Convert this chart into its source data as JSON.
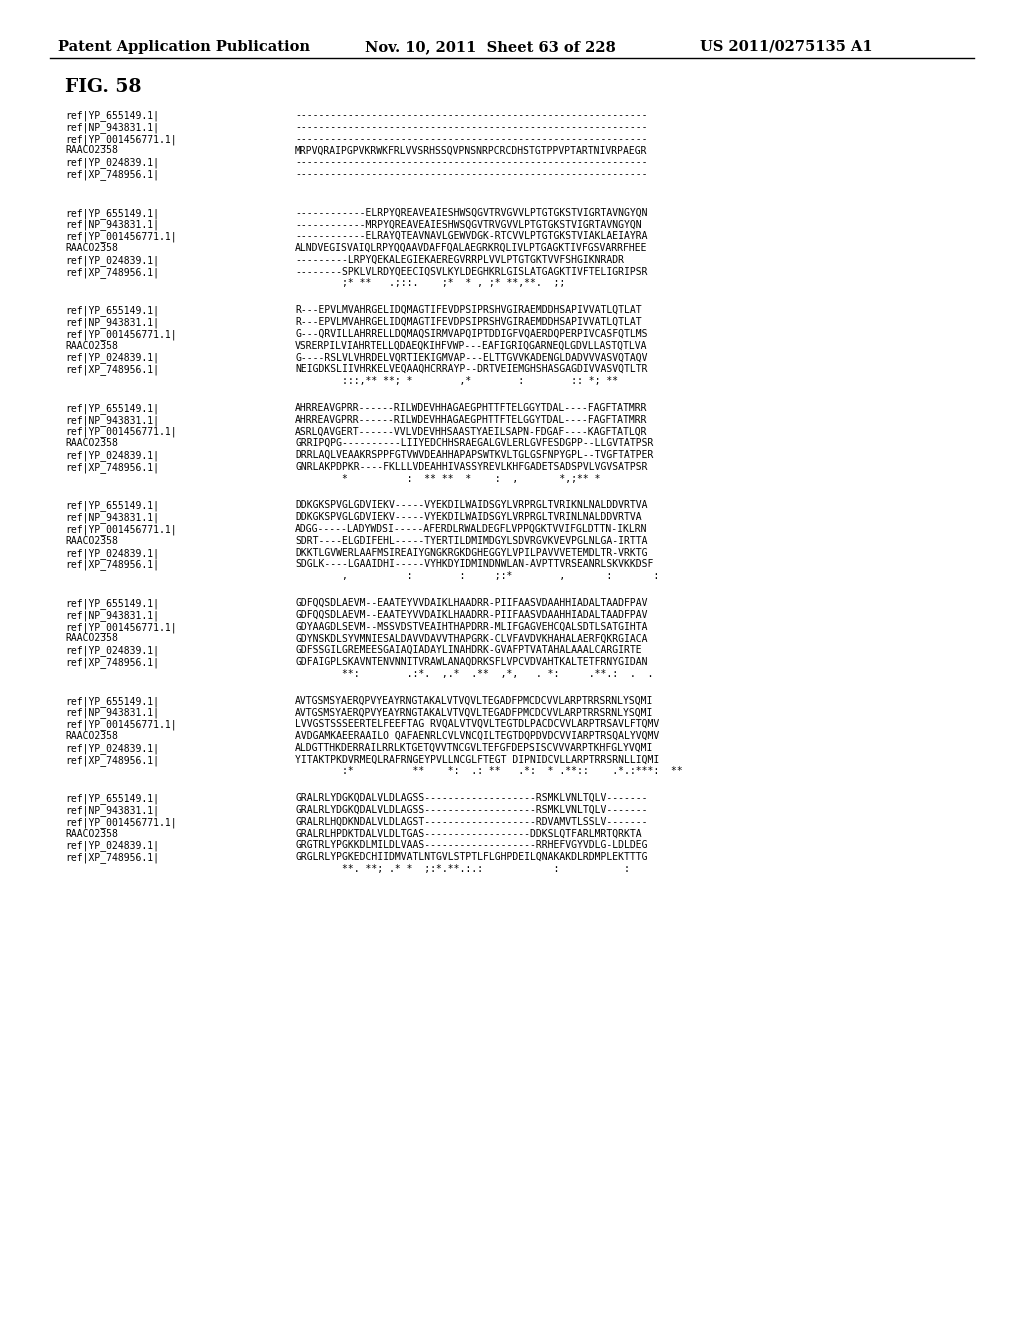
{
  "header_left": "Patent Application Publication",
  "header_middle": "Nov. 10, 2011  Sheet 63 of 228",
  "header_right": "US 2011/0275135 A1",
  "fig_label": "FIG. 58",
  "background_color": "#ffffff",
  "text_color": "#000000",
  "alignment_blocks": [
    {
      "sequences": [
        [
          "ref|YP_655149.1|",
          "------------------------------------------------------------"
        ],
        [
          "ref|NP_943831.1|",
          "------------------------------------------------------------"
        ],
        [
          "ref|YP_001456771.1|",
          "------------------------------------------------------------"
        ],
        [
          "RAACO2358",
          "MRPVQRAIPGPVKRWKFRLVVSRHSSQVPNSNRPCRCDHSTGTPPVPTARTNIVRPAEGR"
        ],
        [
          "ref|YP_024839.1|",
          "------------------------------------------------------------"
        ],
        [
          "ref|XP_748956.1|",
          "------------------------------------------------------------"
        ]
      ],
      "conservation": ""
    },
    {
      "sequences": [
        [
          "ref|YP_655149.1|",
          "------------ELRPYQREAVEAIESHWSQGVTRVGVVLPTGTGKSTVIGRTAVNGYQN"
        ],
        [
          "ref|NP_943831.1|",
          "------------MRPYQREAVEAIESHWSQGVTRVGVVLPTGTGKSTVIGRTAVNGYQN"
        ],
        [
          "ref|YP_001456771.1|",
          "------------ELRAYQTEAVNAVLGEWVDGK-RTCVVLPTGTGKSTVIAKLAEIAYRA"
        ],
        [
          "RAACO2358",
          "ALNDVEGISVAIQLRPYQQAAVDAFFQALAEGRKRQLIVLPTGAGKTIVFGSVARRFHEE"
        ],
        [
          "ref|YP_024839.1|",
          "---------LRPYQEKALEGIEKAEREGVRRPLVVLPTGTGKTVVFSHGIKNRADR"
        ],
        [
          "ref|XP_748956.1|",
          "--------SPKLVLRDYQEECIQSVLKYLDEGHKRLGISLATGAGKTIVFTELIGRIPSR"
        ]
      ],
      "conservation": "        ;* **   .;::.    ;*  * , ;* **,**.  ;;"
    },
    {
      "sequences": [
        [
          "ref|YP_655149.1|",
          "R---EPVLMVAHRGELIDQMAGTIFEVDPSIPRSHVGIRAEMDDHSAPIVVATLQTLAT"
        ],
        [
          "ref|NP_943831.1|",
          "R---EPVLMVAHRGELIDQMAGTIFEVDPSIPRSHVGIRAEMDDHSAPIVVATLQTLAT"
        ],
        [
          "ref|YP_001456771.1|",
          "G---QRVILLAHRRELLDQMAQSIRMVAPQIPTDDIGFVQAERDQPERPIVCASFQTLMS"
        ],
        [
          "RAACO2358",
          "VSRERPILVIAHRTELLQDAEQKIHFVWP---EAFIGRIQGARNEQLGDVLLASTQTLVA"
        ],
        [
          "ref|YP_024839.1|",
          "G----RSLVLVHRDELVQRTIEKIGMVAP---ELTTGVVKADENGLDADVVVASVQTAQV"
        ],
        [
          "ref|XP_748956.1|",
          "NEIGDKSLIIVHRKELVEQAAQHCRRAYP--DRTVEIEMGHSHASGAGDIVVASVQTLTR"
        ]
      ],
      "conservation": "        :::,** **; *        ,*        :        :: *; **"
    },
    {
      "sequences": [
        [
          "ref|YP_655149.1|",
          "AHRREAVGPRR------RILWDEVHHAGAEGPHTTFTELGGYTDAL----FAGFTATMRR"
        ],
        [
          "ref|NP_943831.1|",
          "AHRREAVGPRR------RILWDEVHHAGAEGPHTTFTELGGYTDAL----FAGFTATMRR"
        ],
        [
          "ref|YP_001456771.1|",
          "ASRLQAVGERT------VVLVDEVHHSAASTYAEILSAPN-FDGAF----KAGFTATLQR"
        ],
        [
          "RAACO2358",
          "GRRIPQPG----------LIIYEDCHHSRAEGALGVLERLGVFESDGPP--LLGVTATPSR"
        ],
        [
          "ref|YP_024839.1|",
          "DRRLAQLVEAAKRSPPFGTVWVDEAHHAPAPSWTKVLTGLGSFNPYGPL--TVGFTATPER"
        ],
        [
          "ref|XP_748956.1|",
          "GNRLAKPDPKR----FKLLLVDEAHHIVASSYREVLKHFGADETSADSPVLVGVSATPSR"
        ]
      ],
      "conservation": "        *          :  ** **  *    :  ,       *,;** *"
    },
    {
      "sequences": [
        [
          "ref|YP_655149.1|",
          "DDKGKSPVGLGDVIEKV-----VYEKDILWAIDSGYLVRPRGLTVRIKNLNALDDVRTVA"
        ],
        [
          "ref|NP_943831.1|",
          "DDKGKSPVGLGDVIEKV-----VYEKDILWAIDSGYLVRPRGLTVRINLNALDDVRTVA"
        ],
        [
          "ref|YP_001456771.1|",
          "ADGG-----LADYWDSI-----AFERDLRWALDEGFLVPPQGKTVVIFGLDTTN-IKLRN"
        ],
        [
          "RAACO2358",
          "SDRT----ELGDIFEHL-----TYERTILDMIMDGYLSDVRGVKVEVPGLNLGA-IRTTA"
        ],
        [
          "ref|YP_024839.1|",
          "DKKTLGVWERLAAFMSIREAIYGNGKRGKDGHEGGYLVPILPAVVVETEMDLTR-VRKTG"
        ],
        [
          "ref|XP_748956.1|",
          "SDGLK----LGAAIDHI-----VYHKDYIDMINDNWLAN-AVPTTVRSEANRLSKVKKDSF"
        ]
      ],
      "conservation": "        ,          :        :     ;:*        ,       :       :"
    },
    {
      "sequences": [
        [
          "ref|YP_655149.1|",
          "GDFQQSDLAEVM--EAATEYVVDAIKLHAADRR-PIIFAASVDAAHHIADALTAADFPAV"
        ],
        [
          "ref|NP_943831.1|",
          "GDFQQSDLAEVM--EAATEYVVDAIKLHAADRR-PIIFAASVDAAHHIADALTAADFPAV"
        ],
        [
          "ref|YP_001456771.1|",
          "GDYAAGDLSEVM--MSSVDSTVEAIHTHAPDRR-MLIFGAGVEHCQALSDTLSATGIHTA"
        ],
        [
          "RAACO2358",
          "GDYNSKDLSYVMNIESALDAVVDAVVTHAPGRK-CLVFAVDVKHAHALAERFQKRGIACA"
        ],
        [
          "ref|YP_024839.1|",
          "GDFSSGILGREMEESGAIAQIADAYLINAHDRK-GVAFPTVATAHALAAALCARGIRTE"
        ],
        [
          "ref|XP_748956.1|",
          "GDFAIGPLSKAVNTENVNNITVRAWLANAQDRKSFLVPCVDVAHTKALTETFRNYGIDAN"
        ]
      ],
      "conservation": "        **:        .:*.  ,.*  .**  ,*,   . *:     .**.:  .  ."
    },
    {
      "sequences": [
        [
          "ref|YP_655149.1|",
          "AVTGSMSYAERQPVYEAYRNGTAKALVTVQVLTEGADFPMCDCVVLARPTRRSRNLYSQMI"
        ],
        [
          "ref|NP_943831.1|",
          "AVTGSMSYAERQPVYEAYRNGTAKALVTVQVLTEGADFPMCDCVVLARPTRRSRNLYSQMI"
        ],
        [
          "ref|YP_001456771.1|",
          "LVVGSTSSSEERTELFEEFTAG RVQALVTVQVLTEGTDLPACDCVVLARPTRSAVLFTQMV"
        ],
        [
          "RAACO2358",
          "AVDGAMKAEERAAILO QAFAENRLCVLVNCQILTEGTDQPDVDCVVIARPTRSQALYVQMV"
        ],
        [
          "ref|YP_024839.1|",
          "ALDGTTHKDERRAILRRLKTGETQVVTNCGVLTEFGFDEPSISCVVVARPTKHFGLYVQMI"
        ],
        [
          "ref|XP_748956.1|",
          "YITAKTPKDVRMEQLRAFRNGEYPVLLNCGLFTEGT DIPNIDCVLLARPTRRSRNLLIQMI"
        ]
      ],
      "conservation": "        :*          **    *:  .: **   .*:  * .**::    .*.:***:  **"
    },
    {
      "sequences": [
        [
          "ref|YP_655149.1|",
          "GRALRLYDGKQDALVLDLAGSS-------------------RSMKLVNLTQLV-------"
        ],
        [
          "ref|NP_943831.1|",
          "GRALRLYDGKQDALVLDLAGSS-------------------RSMKLVNLTQLV-------"
        ],
        [
          "ref|YP_001456771.1|",
          "GRALRLHQDKNDALVLDLAGST-------------------RDVAMVTLSSLV-------"
        ],
        [
          "RAACO2358",
          "GRALRLHPDKTDALVLDLTGAS------------------DDKSLQTFARLMRTQRKTA"
        ],
        [
          "ref|YP_024839.1|",
          "GRGTRLYPGKKDLMILDLVAAS-------------------RRHEFVGYVDLG-LDLDEG"
        ],
        [
          "ref|XP_748956.1|",
          "GRGLRLYPGKEDCHIIDMVATLNTGVLSTPTLFLGHPDEILQNAKAKDLRDMPLEKTTTG"
        ]
      ],
      "conservation": "        **. **; .* *  ;:*.**.:.:            :           :"
    }
  ]
}
